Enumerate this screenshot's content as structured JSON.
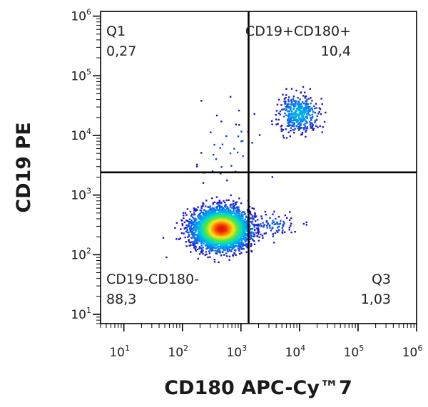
{
  "chart_data": {
    "type": "scatter",
    "plot_style": "flow-cytometry density dot plot",
    "xlabel": "CD180 APC-Cy™7",
    "ylabel": "CD19 PE",
    "x_scale": "log",
    "y_scale": "log",
    "xlim": [
      4,
      1000000
    ],
    "ylim": [
      7,
      1200000
    ],
    "x_ticks": [
      {
        "base": "10",
        "exp": "1",
        "value": 10
      },
      {
        "base": "10",
        "exp": "2",
        "value": 100
      },
      {
        "base": "10",
        "exp": "3",
        "value": 1000
      },
      {
        "base": "10",
        "exp": "4",
        "value": 10000
      },
      {
        "base": "10",
        "exp": "5",
        "value": 100000
      },
      {
        "base": "10",
        "exp": "6",
        "value": 1000000
      }
    ],
    "y_ticks": [
      {
        "base": "10",
        "exp": "1",
        "value": 10
      },
      {
        "base": "10",
        "exp": "2",
        "value": 100
      },
      {
        "base": "10",
        "exp": "3",
        "value": 1000
      },
      {
        "base": "10",
        "exp": "4",
        "value": 10000
      },
      {
        "base": "10",
        "exp": "5",
        "value": 100000
      },
      {
        "base": "10",
        "exp": "6",
        "value": 1000000
      }
    ],
    "gate": {
      "x": 1350,
      "y": 2400
    },
    "quadrants": [
      {
        "name": "Q1",
        "percent": "0,27",
        "position": "top-left"
      },
      {
        "name": "CD19+CD180+",
        "percent": "10,4",
        "position": "top-right"
      },
      {
        "name": "CD19-CD180-",
        "percent": "88,3",
        "position": "bottom-left"
      },
      {
        "name": "Q3",
        "percent": "1,03",
        "position": "bottom-right"
      }
    ],
    "populations": [
      {
        "x": 450,
        "y": 280,
        "spread_x_decades": 0.24,
        "spread_y_decades": 0.17,
        "weight": 0.86
      },
      {
        "x": 9500,
        "y": 24000,
        "spread_x_decades": 0.17,
        "spread_y_decades": 0.15,
        "weight": 0.1
      },
      {
        "x": 3500,
        "y": 330,
        "spread_x_decades": 0.22,
        "spread_y_decades": 0.1,
        "weight": 0.02
      },
      {
        "x": 700,
        "y": 6000,
        "spread_x_decades": 0.35,
        "spread_y_decades": 0.35,
        "weight": 0.01
      }
    ],
    "grid": false,
    "legend": "none"
  }
}
